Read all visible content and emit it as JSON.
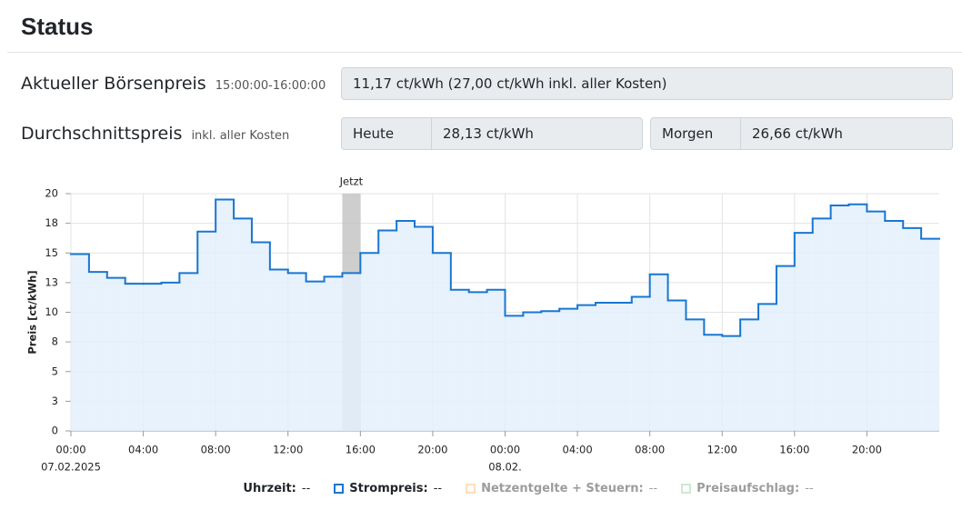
{
  "header": {
    "title": "Status"
  },
  "current_price": {
    "label": "Aktueller Börsenpreis",
    "sublabel": "15:00:00-16:00:00",
    "value": "11,17 ct/kWh (27,00 ct/kWh inkl. aller Kosten)"
  },
  "average_price": {
    "label": "Durchschnittspreis",
    "sublabel": "inkl. aller Kosten",
    "today": {
      "label": "Heute",
      "value": "28,13 ct/kWh"
    },
    "tomorrow": {
      "label": "Morgen",
      "value": "26,66 ct/kWh"
    }
  },
  "chart_data": {
    "type": "step",
    "ylabel": "Preis [ct/kWh]",
    "categories": [
      "00:00",
      null,
      null,
      null,
      "04:00",
      null,
      null,
      null,
      "08:00",
      null,
      null,
      null,
      "12:00",
      null,
      null,
      null,
      "16:00",
      null,
      null,
      null,
      "20:00",
      null,
      null,
      null,
      "00:00",
      null,
      null,
      null,
      "04:00",
      null,
      null,
      null,
      "08:00",
      null,
      null,
      null,
      "12:00",
      null,
      null,
      null,
      "16:00",
      null,
      null,
      null,
      "20:00",
      null,
      null,
      null
    ],
    "date_labels": [
      "07.02.2025",
      null,
      null,
      null,
      null,
      null,
      null,
      null,
      null,
      null,
      null,
      null,
      null,
      null,
      null,
      null,
      null,
      null,
      null,
      null,
      null,
      null,
      null,
      null,
      "08.02.",
      null,
      null,
      null,
      null,
      null,
      null,
      null,
      null,
      null,
      null,
      null,
      null,
      null,
      null,
      null,
      null,
      null,
      null,
      null,
      null,
      null,
      null,
      null
    ],
    "values": [
      14.9,
      13.4,
      12.9,
      12.4,
      12.4,
      12.5,
      13.3,
      16.8,
      19.5,
      17.9,
      15.9,
      13.6,
      13.3,
      12.6,
      13.0,
      13.3,
      15.0,
      16.9,
      17.7,
      17.2,
      15.0,
      11.9,
      11.7,
      11.9,
      9.7,
      10.0,
      10.1,
      10.3,
      10.6,
      10.8,
      10.8,
      11.3,
      13.2,
      11.0,
      9.4,
      8.1,
      8.0,
      9.4,
      10.7,
      13.9,
      16.7,
      17.9,
      19.0,
      19.1,
      18.5,
      17.7,
      17.1,
      16.2
    ],
    "color": "#1976d2",
    "fill_color": "#e3f0fc",
    "ylim": [
      0,
      20
    ],
    "yticks": [
      0,
      {
        "value": 2.5,
        "label": "3"
      },
      5,
      {
        "value": 7.5,
        "label": "8"
      },
      10,
      {
        "value": 12.5,
        "label": "13"
      },
      15,
      {
        "value": 17.5,
        "label": "18"
      },
      20
    ],
    "grid": true,
    "now_marker": {
      "label": "Jetzt",
      "index": 15
    },
    "legend": [
      {
        "label": "Uhrzeit:",
        "value": "--"
      },
      {
        "label": "Strompreis:",
        "value": "--",
        "color": "#1976d2",
        "enabled": true
      },
      {
        "label": "Netzentgelte + Steuern:",
        "value": "--",
        "color": "#ffb870",
        "enabled": false
      },
      {
        "label": "Preisaufschlag:",
        "value": "--",
        "color": "#8fd19e",
        "enabled": false
      }
    ]
  }
}
